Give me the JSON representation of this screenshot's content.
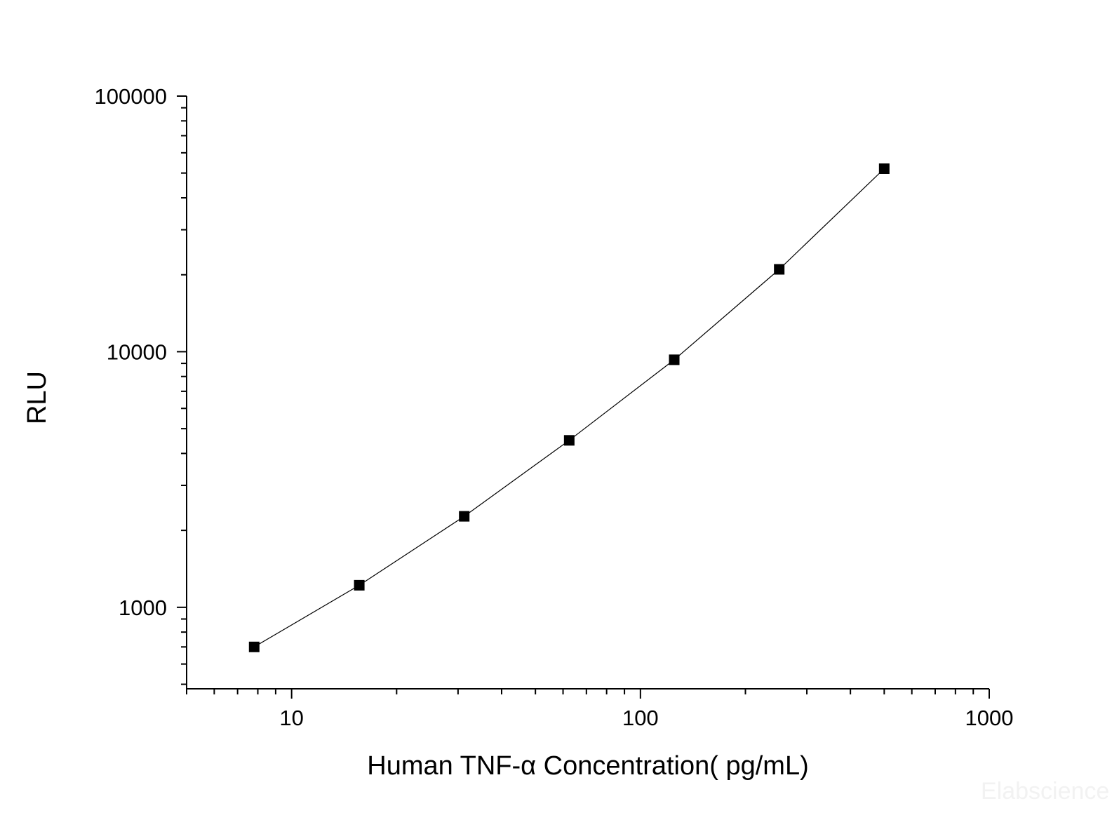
{
  "chart_data": {
    "type": "line",
    "xlabel": "Human TNF-α  Concentration( pg/mL)",
    "ylabel": "RLU",
    "xscale": "log",
    "yscale": "log",
    "xlim": [
      5,
      1000
    ],
    "ylim": [
      480,
      100000
    ],
    "x_ticks": [
      10,
      100,
      1000
    ],
    "x_tick_labels": [
      "10",
      "100",
      "1000"
    ],
    "y_ticks": [
      1000,
      10000,
      100000
    ],
    "y_tick_labels": [
      "1000",
      "10000",
      "100000"
    ],
    "grid": false,
    "legend": "none",
    "marker": "square",
    "line_color": "#000000",
    "marker_color": "#000000",
    "series": [
      {
        "x": [
          7.81,
          15.63,
          31.25,
          62.5,
          125,
          250,
          500
        ],
        "y": [
          700,
          1220,
          2270,
          4500,
          9300,
          21000,
          52000
        ]
      }
    ]
  },
  "watermark": "Elabscience"
}
